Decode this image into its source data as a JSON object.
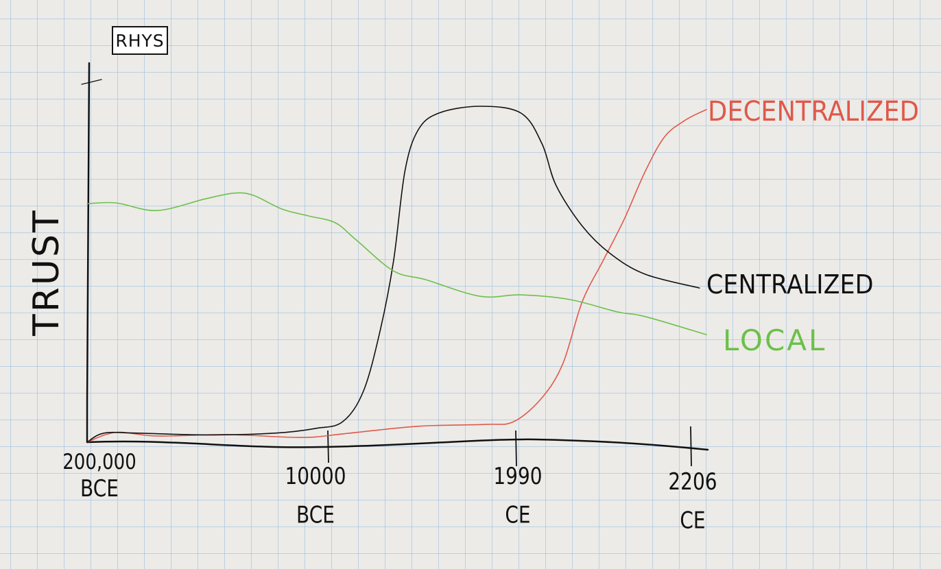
{
  "author": "RHYS",
  "chart_data": {
    "type": "line",
    "title": "",
    "xlabel": "",
    "ylabel": "TRUST",
    "x_note": "x values are positions along the (non-linear) time axis: 0 = first tick, 3 = last tick",
    "xticks": [
      {
        "pos": 0,
        "line1": "200,000",
        "line2": "BCE"
      },
      {
        "pos": 1,
        "line1": "10000",
        "line2": "BCE"
      },
      {
        "pos": 2,
        "line1": "1990",
        "line2": "CE"
      },
      {
        "pos": 3,
        "line1": "2206",
        "line2": "CE"
      }
    ],
    "ylim": [
      0,
      100
    ],
    "grid": true,
    "series": [
      {
        "name": "DECENTRALIZED",
        "color": "#e0584a",
        "x": [
          0,
          0.12,
          0.29,
          0.58,
          0.89,
          1.08,
          1.48,
          1.84,
          1.99,
          2.15,
          2.27,
          2.38,
          2.5,
          2.62,
          2.74,
          2.85,
          2.97,
          3.09
        ],
        "y": [
          0,
          2.7,
          1.7,
          2.1,
          1.3,
          2.3,
          4.4,
          4.9,
          5.7,
          12.3,
          21.8,
          38.8,
          50.2,
          61.6,
          74.8,
          84.3,
          89,
          91.9
        ]
      },
      {
        "name": "CENTRALIZED",
        "color": "#111111",
        "x": [
          0,
          0.07,
          0.21,
          0.49,
          0.78,
          0.95,
          1.08,
          1.19,
          1.28,
          1.35,
          1.41,
          1.48,
          1.59,
          1.81,
          2.03,
          2.15,
          2.23,
          2.38,
          2.54,
          2.74,
          3.05
        ],
        "y": [
          0,
          2.5,
          2.5,
          2,
          2.5,
          3.8,
          5.7,
          14.2,
          31.2,
          50.2,
          74.8,
          86.2,
          90.9,
          92.8,
          90.9,
          82.4,
          71,
          59.7,
          52.1,
          46.4,
          42.6
        ]
      },
      {
        "name": "LOCAL",
        "color": "#6cc04a",
        "x": [
          0,
          0.12,
          0.29,
          0.49,
          0.61,
          0.69,
          0.81,
          0.92,
          1.04,
          1.15,
          1.35,
          1.52,
          1.81,
          2.03,
          2.31,
          2.58,
          2.74,
          3.09
        ],
        "y": [
          65.9,
          66.1,
          64,
          67.2,
          68.8,
          68.2,
          64.4,
          62.5,
          60.6,
          55.9,
          47.3,
          44.9,
          40.3,
          40.7,
          39.4,
          36,
          34.7,
          29.7
        ]
      }
    ]
  }
}
